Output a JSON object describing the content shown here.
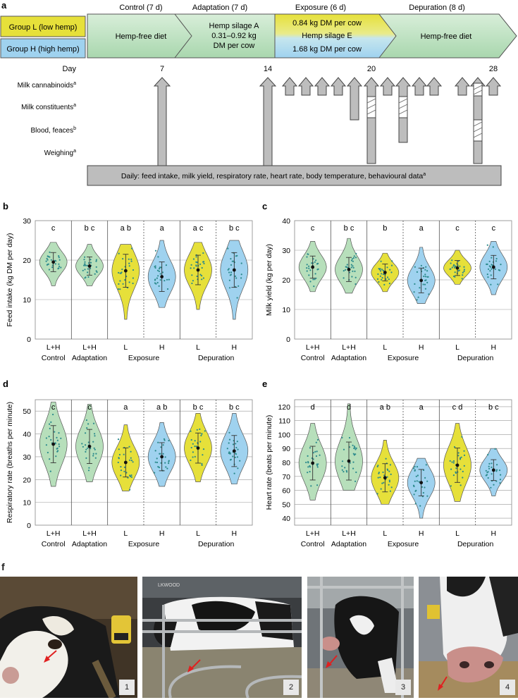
{
  "panel_labels": {
    "a": "a",
    "b": "b",
    "c": "c",
    "d": "d",
    "e": "e",
    "f": "f"
  },
  "schedule": {
    "groups": {
      "low": "Group L (low hemp)",
      "high": "Group H (high hemp)"
    },
    "phases": {
      "control": {
        "title": "Control (7 d)",
        "body": "Hemp-free diet"
      },
      "adaptation": {
        "title": "Adaptation (7 d)",
        "line1": "Hemp silage A",
        "line2": "0.31–0.92 kg",
        "line3": "DM per cow"
      },
      "exposure": {
        "title": "Exposure (6 d)",
        "top": "0.84 kg DM per cow",
        "mid": "Hemp silage E",
        "bottom": "1.68 kg DM per cow"
      },
      "depuration": {
        "title": "Depuration (8 d)",
        "body": "Hemp-free diet"
      }
    },
    "day_label": "Day",
    "day_ticks": [
      "7",
      "14",
      "20",
      "28"
    ],
    "rows": {
      "cannabinoids": "Milk cannabinoids",
      "constituents": "Milk constituents",
      "blood": "Blood, feaces",
      "weighing": "Weighing"
    },
    "superscripts": {
      "cannabinoids": "a",
      "constituents": "a",
      "blood": "b",
      "weighing": "a",
      "daily": "a"
    },
    "daily": "Daily: feed intake, milk yield, respiratory rate, heart rate, body temperature, behavioural data"
  },
  "colors": {
    "yellow": "#e6e03a",
    "blue": "#9fd2ef",
    "green": "#b7dfbb",
    "gray": "#bdbdbd",
    "dark": "#555555"
  },
  "chart_data": [
    {
      "id": "b",
      "type": "violin",
      "ylabel": "Feed intake (kg DM per day)",
      "ylim": [
        0,
        30
      ],
      "yticks": [
        "0",
        "10",
        "20",
        "30"
      ],
      "categories": [
        "L+H",
        "L+H",
        "L",
        "H",
        "L",
        "H"
      ],
      "groups": [
        "Control",
        "Adaptation",
        "Exposure",
        "Depuration"
      ],
      "fill": [
        "green",
        "green",
        "yellow",
        "blue",
        "yellow",
        "blue"
      ],
      "letters": [
        "c",
        "b c",
        "a b",
        "a",
        "a c",
        "b c"
      ],
      "means": [
        19.5,
        18.5,
        17.3,
        15.8,
        17.5,
        17.5
      ],
      "range": [
        [
          13.5,
          24.5
        ],
        [
          13.5,
          24
        ],
        [
          5,
          24
        ],
        [
          8,
          25
        ],
        [
          7.5,
          24.5
        ],
        [
          5,
          25
        ]
      ]
    },
    {
      "id": "c",
      "type": "violin",
      "ylabel": "Milk yield (kg per day)",
      "ylim": [
        0,
        40
      ],
      "yticks": [
        "0",
        "10",
        "20",
        "30",
        "40"
      ],
      "categories": [
        "L+H",
        "L+H",
        "L",
        "H",
        "L",
        "H"
      ],
      "groups": [
        "Control",
        "Adaptation",
        "Exposure",
        "Depuration"
      ],
      "fill": [
        "green",
        "green",
        "yellow",
        "blue",
        "yellow",
        "blue"
      ],
      "letters": [
        "c",
        "b c",
        "b",
        "a",
        "c",
        "c"
      ],
      "means": [
        24.3,
        23.5,
        22.5,
        19.8,
        24,
        24.3
      ],
      "range": [
        [
          16,
          33
        ],
        [
          15.5,
          34
        ],
        [
          16,
          29
        ],
        [
          12,
          31
        ],
        [
          18.5,
          30
        ],
        [
          15,
          33
        ]
      ]
    },
    {
      "id": "d",
      "type": "violin",
      "ylabel": "Respiratory rate (breaths per minute)",
      "ylim": [
        0,
        55
      ],
      "yticks": [
        "0",
        "10",
        "20",
        "30",
        "40",
        "50"
      ],
      "categories": [
        "L+H",
        "L+H",
        "L",
        "H",
        "L",
        "H"
      ],
      "groups": [
        "Control",
        "Adaptation",
        "Exposure",
        "Depuration"
      ],
      "fill": [
        "green",
        "green",
        "yellow",
        "blue",
        "yellow",
        "blue"
      ],
      "letters": [
        "c",
        "c",
        "a",
        "a b",
        "b c",
        "b c"
      ],
      "means": [
        35.5,
        34.5,
        27.5,
        30,
        33.8,
        32.5
      ],
      "range": [
        [
          17,
          54
        ],
        [
          19,
          53
        ],
        [
          15,
          44
        ],
        [
          17,
          45
        ],
        [
          19,
          49
        ],
        [
          18,
          49
        ]
      ]
    },
    {
      "id": "e",
      "type": "violin",
      "ylabel": "Heart rate (beats per minute)",
      "ylim": [
        35,
        125
      ],
      "yticks": [
        "40",
        "50",
        "60",
        "70",
        "80",
        "90",
        "100",
        "110",
        "120"
      ],
      "categories": [
        "L+H",
        "L+H",
        "L",
        "H",
        "L",
        "H"
      ],
      "groups": [
        "Control",
        "Adaptation",
        "Exposure",
        "Depuration"
      ],
      "fill": [
        "green",
        "green",
        "yellow",
        "blue",
        "yellow",
        "blue"
      ],
      "letters": [
        "d",
        "d",
        "a b",
        "a",
        "c d",
        "b c"
      ],
      "means": [
        79.5,
        81,
        69,
        65.5,
        78,
        74.5
      ],
      "range": [
        [
          53,
          108
        ],
        [
          60,
          122
        ],
        [
          50,
          96
        ],
        [
          40,
          83
        ],
        [
          52,
          108
        ],
        [
          56,
          90
        ]
      ]
    }
  ],
  "photos": {
    "numbers": [
      "1",
      "2",
      "3",
      "4"
    ],
    "watermark": "LKWOOD"
  }
}
